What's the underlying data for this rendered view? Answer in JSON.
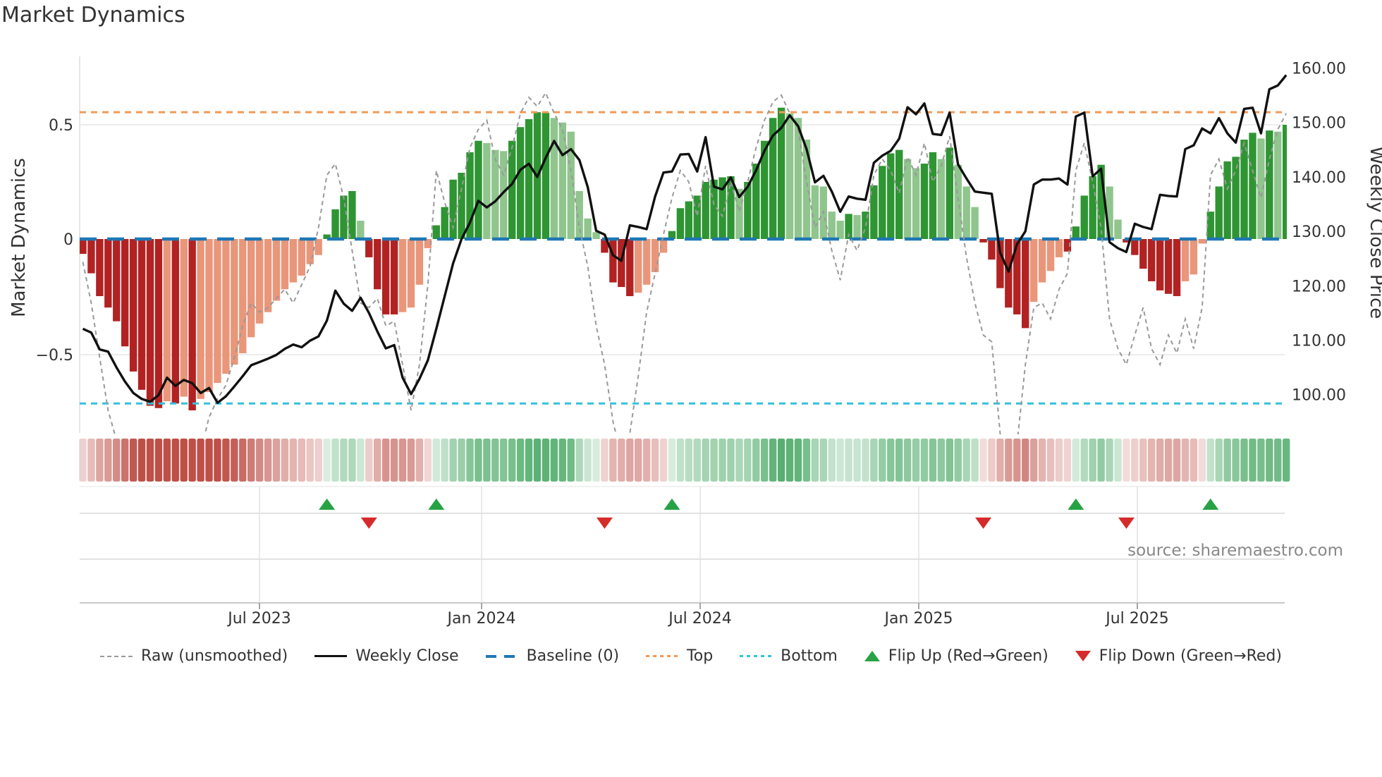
{
  "chart": {
    "title": "Market Dynamics",
    "source": "source: sharemaestro.com"
  },
  "axes": {
    "left_label": "Market Dynamics",
    "right_label": "Weekly Close Price",
    "left_ticks": [
      "0.5",
      "0",
      "−0.5"
    ],
    "right_ticks": [
      "160.00",
      "150.00",
      "140.00",
      "130.00",
      "120.00",
      "110.00",
      "100.00"
    ],
    "x_ticks": [
      "Jul 2023",
      "Jan 2024",
      "Jul 2024",
      "Jan 2025",
      "Jul 2025"
    ]
  },
  "legend": {
    "items": [
      {
        "type": "rawline",
        "label": "Raw (unsmoothed)"
      },
      {
        "type": "solidline",
        "label": "Weekly Close"
      },
      {
        "type": "bigdash",
        "label": "Baseline (0)"
      },
      {
        "type": "dots-orange",
        "label": "Top"
      },
      {
        "type": "dots-cyan",
        "label": "Bottom"
      },
      {
        "type": "tri-up",
        "label": "Flip Up (Red→Green)"
      },
      {
        "type": "tri-down",
        "label": "Flip Down (Green→Red)"
      }
    ]
  },
  "colors": {
    "bar_dark_red": "#B22222",
    "bar_light_red": "#E9967A",
    "bar_dark_green": "#2E9532",
    "bar_light_green": "#90C58E",
    "baseline": "#1F77B4",
    "top_line": "#F09A57",
    "bottom_line": "#35C0DE",
    "raw_line": "#999999",
    "close_line": "#111111",
    "flip_up": "#27A245",
    "flip_down": "#D62B2B",
    "source_text": "#888888",
    "heat_red": [
      190,
      80,
      72
    ],
    "heat_green": [
      77,
      170,
      104
    ]
  },
  "chart_data": {
    "type": "bar",
    "subtype": "weekly oscillator bars + price line + raw dashed line + heatmap strip + flip markers",
    "title": "Market Dynamics",
    "freq": "weekly",
    "start_date": "2023-02-06",
    "n_weeks": 144,
    "x_tick_labels": [
      "Jul 2023",
      "Jan 2024",
      "Jul 2024",
      "Jan 2025",
      "Jul 2025"
    ],
    "left_axis": {
      "label": "Market Dynamics",
      "ticks": [
        0.5,
        0,
        -0.5
      ],
      "range": [
        -0.85,
        0.86
      ]
    },
    "right_axis": {
      "label": "Weekly Close Price",
      "ticks": [
        160,
        150,
        140,
        130,
        120,
        110,
        100
      ],
      "range": [
        92.7,
        164.7
      ]
    },
    "baseline": 0,
    "top_threshold": 0.555,
    "bottom_threshold": -0.72,
    "grid": "horizontal at 0.5 and -0.5 on main panel; vertical at half-year ticks on marker panel",
    "legend_position": "bottom center",
    "series": [
      {
        "name": "Market Dynamics (smoothed bars)",
        "type": "bar",
        "values": [
          -0.065,
          -0.15,
          -0.25,
          -0.3,
          -0.36,
          -0.47,
          -0.58,
          -0.66,
          -0.73,
          -0.74,
          -0.71,
          -0.72,
          -0.69,
          -0.75,
          -0.7,
          -0.67,
          -0.63,
          -0.59,
          -0.55,
          -0.5,
          -0.43,
          -0.37,
          -0.32,
          -0.27,
          -0.22,
          -0.19,
          -0.16,
          -0.11,
          -0.07,
          0.02,
          0.13,
          0.19,
          0.21,
          0.08,
          -0.08,
          -0.22,
          -0.33,
          -0.33,
          -0.32,
          -0.3,
          -0.2,
          -0.04,
          0.06,
          0.14,
          0.26,
          0.29,
          0.38,
          0.43,
          0.42,
          0.39,
          0.385,
          0.43,
          0.49,
          0.525,
          0.555,
          0.553,
          0.53,
          0.51,
          0.47,
          0.21,
          0.09,
          0.03,
          -0.06,
          -0.19,
          -0.21,
          -0.25,
          -0.235,
          -0.2,
          -0.145,
          -0.06,
          0.035,
          0.135,
          0.165,
          0.19,
          0.25,
          0.26,
          0.27,
          0.275,
          0.22,
          0.25,
          0.33,
          0.43,
          0.53,
          0.575,
          0.55,
          0.53,
          0.435,
          0.235,
          0.23,
          0.12,
          0.08,
          0.11,
          0.105,
          0.12,
          0.235,
          0.32,
          0.375,
          0.39,
          0.35,
          0.31,
          0.33,
          0.38,
          0.35,
          0.4,
          0.325,
          0.23,
          0.14,
          -0.015,
          -0.09,
          -0.215,
          -0.3,
          -0.33,
          -0.39,
          -0.275,
          -0.19,
          -0.14,
          -0.08,
          -0.055,
          0.055,
          0.19,
          0.275,
          0.325,
          0.23,
          0.085,
          -0.015,
          -0.07,
          -0.13,
          -0.185,
          -0.225,
          -0.24,
          -0.25,
          -0.185,
          -0.155,
          -0.02,
          0.12,
          0.23,
          0.34,
          0.36,
          0.435,
          0.465,
          0.44,
          0.475,
          0.47,
          0.5
        ],
        "color_class": [
          "dr",
          "dr",
          "dr",
          "dr",
          "dr",
          "dr",
          "dr",
          "dr",
          "dr",
          "dr",
          "lr",
          "dr",
          "lr",
          "dr",
          "lr",
          "lr",
          "lr",
          "lr",
          "lr",
          "lr",
          "lr",
          "lr",
          "lr",
          "lr",
          "lr",
          "lr",
          "lr",
          "lr",
          "lr",
          "dg",
          "dg",
          "dg",
          "dg",
          "lg",
          "dr",
          "dr",
          "dr",
          "dr",
          "lr",
          "lr",
          "lr",
          "lr",
          "dg",
          "dg",
          "dg",
          "dg",
          "dg",
          "dg",
          "lg",
          "lg",
          "lg",
          "dg",
          "dg",
          "dg",
          "dg",
          "dg",
          "lg",
          "lg",
          "lg",
          "lg",
          "lg",
          "lg",
          "dr",
          "dr",
          "dr",
          "dr",
          "lr",
          "lr",
          "lr",
          "lr",
          "dg",
          "dg",
          "dg",
          "dg",
          "dg",
          "dg",
          "dg",
          "dg",
          "lg",
          "dg",
          "dg",
          "dg",
          "dg",
          "dg",
          "lg",
          "lg",
          "lg",
          "lg",
          "lg",
          "lg",
          "lg",
          "dg",
          "lg",
          "dg",
          "dg",
          "dg",
          "dg",
          "dg",
          "lg",
          "lg",
          "dg",
          "dg",
          "lg",
          "dg",
          "lg",
          "lg",
          "lg",
          "dr",
          "dr",
          "dr",
          "dr",
          "dr",
          "dr",
          "lr",
          "lr",
          "lr",
          "lr",
          "dr",
          "dg",
          "dg",
          "dg",
          "dg",
          "lg",
          "lg",
          "dr",
          "dr",
          "dr",
          "dr",
          "dr",
          "dr",
          "dr",
          "lr",
          "lr",
          "lr",
          "dg",
          "dg",
          "dg",
          "dg",
          "dg",
          "dg",
          "lg",
          "dg",
          "lg",
          "dg"
        ]
      },
      {
        "name": "Raw (unsmoothed)",
        "type": "line",
        "style": "dashed gray",
        "values": [
          -0.1,
          -0.28,
          -0.52,
          -0.75,
          -0.88,
          -0.92,
          -0.96,
          -1.0,
          -0.97,
          -0.88,
          -0.92,
          -1.0,
          -0.95,
          -1.05,
          -0.93,
          -0.78,
          -0.7,
          -0.64,
          -0.52,
          -0.38,
          -0.28,
          -0.32,
          -0.3,
          -0.26,
          -0.22,
          -0.28,
          -0.2,
          -0.12,
          0.05,
          0.28,
          0.33,
          0.18,
          -0.05,
          -0.28,
          -0.3,
          -0.26,
          -0.38,
          -0.36,
          -0.55,
          -0.75,
          -0.55,
          -0.2,
          0.3,
          0.16,
          0.05,
          0.22,
          0.4,
          0.48,
          0.52,
          0.35,
          0.28,
          0.4,
          0.55,
          0.62,
          0.58,
          0.64,
          0.55,
          0.48,
          0.3,
          0.05,
          -0.12,
          -0.38,
          -0.55,
          -0.8,
          -0.95,
          -0.85,
          -0.6,
          -0.32,
          -0.15,
          0.02,
          0.18,
          0.3,
          0.25,
          0.1,
          0.32,
          0.15,
          0.1,
          0.25,
          0.12,
          0.25,
          0.4,
          0.52,
          0.6,
          0.63,
          0.55,
          0.48,
          0.25,
          0.05,
          0.12,
          -0.05,
          -0.18,
          0.02,
          -0.05,
          0.05,
          0.28,
          0.35,
          0.3,
          0.2,
          0.36,
          0.28,
          0.42,
          0.25,
          0.32,
          0.45,
          0.18,
          -0.08,
          -0.28,
          -0.42,
          -0.45,
          -0.85,
          -1.05,
          -0.9,
          -0.55,
          -0.3,
          -0.28,
          -0.35,
          -0.22,
          -0.15,
          0.3,
          0.42,
          0.25,
          0.05,
          -0.35,
          -0.48,
          -0.55,
          -0.42,
          -0.3,
          -0.48,
          -0.55,
          -0.42,
          -0.5,
          -0.35,
          -0.48,
          -0.3,
          0.28,
          0.35,
          0.22,
          0.3,
          0.42,
          0.3,
          0.18,
          0.35,
          0.48,
          0.55
        ],
        "axis": "left"
      },
      {
        "name": "Weekly Close",
        "type": "line",
        "style": "solid black",
        "values": [
          112.0,
          111.3,
          108.2,
          107.8,
          104.9,
          102.3,
          100.2,
          99.1,
          98.6,
          99.8,
          103.0,
          101.5,
          102.6,
          102.0,
          100.2,
          101.1,
          98.4,
          99.6,
          101.4,
          103.3,
          105.3,
          105.9,
          106.5,
          107.2,
          108.3,
          109.1,
          108.6,
          109.8,
          110.6,
          113.5,
          119.0,
          116.6,
          115.3,
          117.7,
          114.9,
          111.5,
          108.4,
          109.0,
          103.0,
          100.0,
          102.8,
          106.2,
          112.0,
          118.0,
          124.0,
          128.5,
          131.5,
          135.5,
          134.3,
          135.4,
          137.1,
          138.6,
          141.2,
          142.3,
          139.9,
          143.4,
          146.5,
          143.9,
          145.0,
          143.0,
          138.0,
          130.0,
          129.3,
          125.5,
          124.5,
          131.0,
          130.7,
          130.3,
          136.3,
          140.7,
          140.9,
          144.0,
          144.1,
          140.9,
          147.2,
          138.1,
          137.6,
          139.8,
          136.2,
          138.1,
          141.1,
          144.7,
          147.5,
          148.9,
          151.2,
          149.2,
          145.0,
          138.9,
          140.1,
          137.2,
          133.5,
          136.3,
          135.9,
          135.7,
          142.5,
          143.8,
          144.7,
          146.9,
          152.7,
          151.4,
          153.4,
          147.8,
          147.6,
          151.7,
          142.2,
          139.6,
          137.2,
          137.0,
          136.8,
          126.0,
          122.5,
          127.5,
          129.9,
          138.5,
          139.4,
          139.4,
          139.6,
          138.5,
          151.0,
          151.7,
          140.0,
          141.4,
          127.9,
          126.8,
          126.1,
          131.3,
          130.7,
          130.3,
          136.6,
          136.4,
          136.3,
          145.0,
          145.7,
          148.8,
          147.9,
          150.7,
          147.9,
          146.2,
          152.4,
          152.6,
          147.9,
          156.0,
          156.7,
          158.6
        ],
        "axis": "right"
      }
    ],
    "flip_up_weeks": [
      29,
      42,
      70,
      118,
      134
    ],
    "flip_down_weeks": [
      34,
      62,
      107,
      124
    ],
    "heatmap": "strip below main panel mirrors weekly bar values (red negative, green positive, intensity ~ |value|)"
  }
}
